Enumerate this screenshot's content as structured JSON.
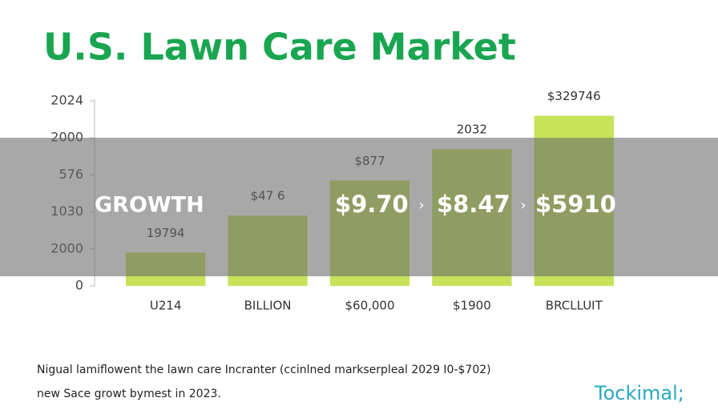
{
  "chart_data": {
    "type": "bar",
    "title": "U.S. Lawn Care Market",
    "categories": [
      "U214",
      "BILLION",
      "$60,000",
      "$1900",
      "BRCLLUIT"
    ],
    "values": [
      0.9,
      1.9,
      2.85,
      3.7,
      4.6
    ],
    "bar_labels": [
      "19794",
      "$47 6",
      "$877",
      "2032",
      "$329746"
    ],
    "color": "#c6e35a",
    "ylim": [
      0,
      5
    ],
    "yticks": [
      {
        "value": 0,
        "label": "0"
      },
      {
        "value": 1,
        "label": "2000"
      },
      {
        "value": 2,
        "label": "1030"
      },
      {
        "value": 3,
        "label": "576"
      },
      {
        "value": 4,
        "label": "2000"
      },
      {
        "value": 5,
        "label": "2024"
      }
    ],
    "overlay": {
      "label": "GROWTH",
      "items": [
        "$9.70",
        "$8.47",
        "$5910"
      ],
      "separator": "›"
    }
  },
  "footnotes": [
    "Nigual lamiflowent the lawn care Incranter (ccinlned markserpleal 2029 I0-$702)",
    "new Sace growt bymest in 2023."
  ],
  "brand": "Tockimal;"
}
